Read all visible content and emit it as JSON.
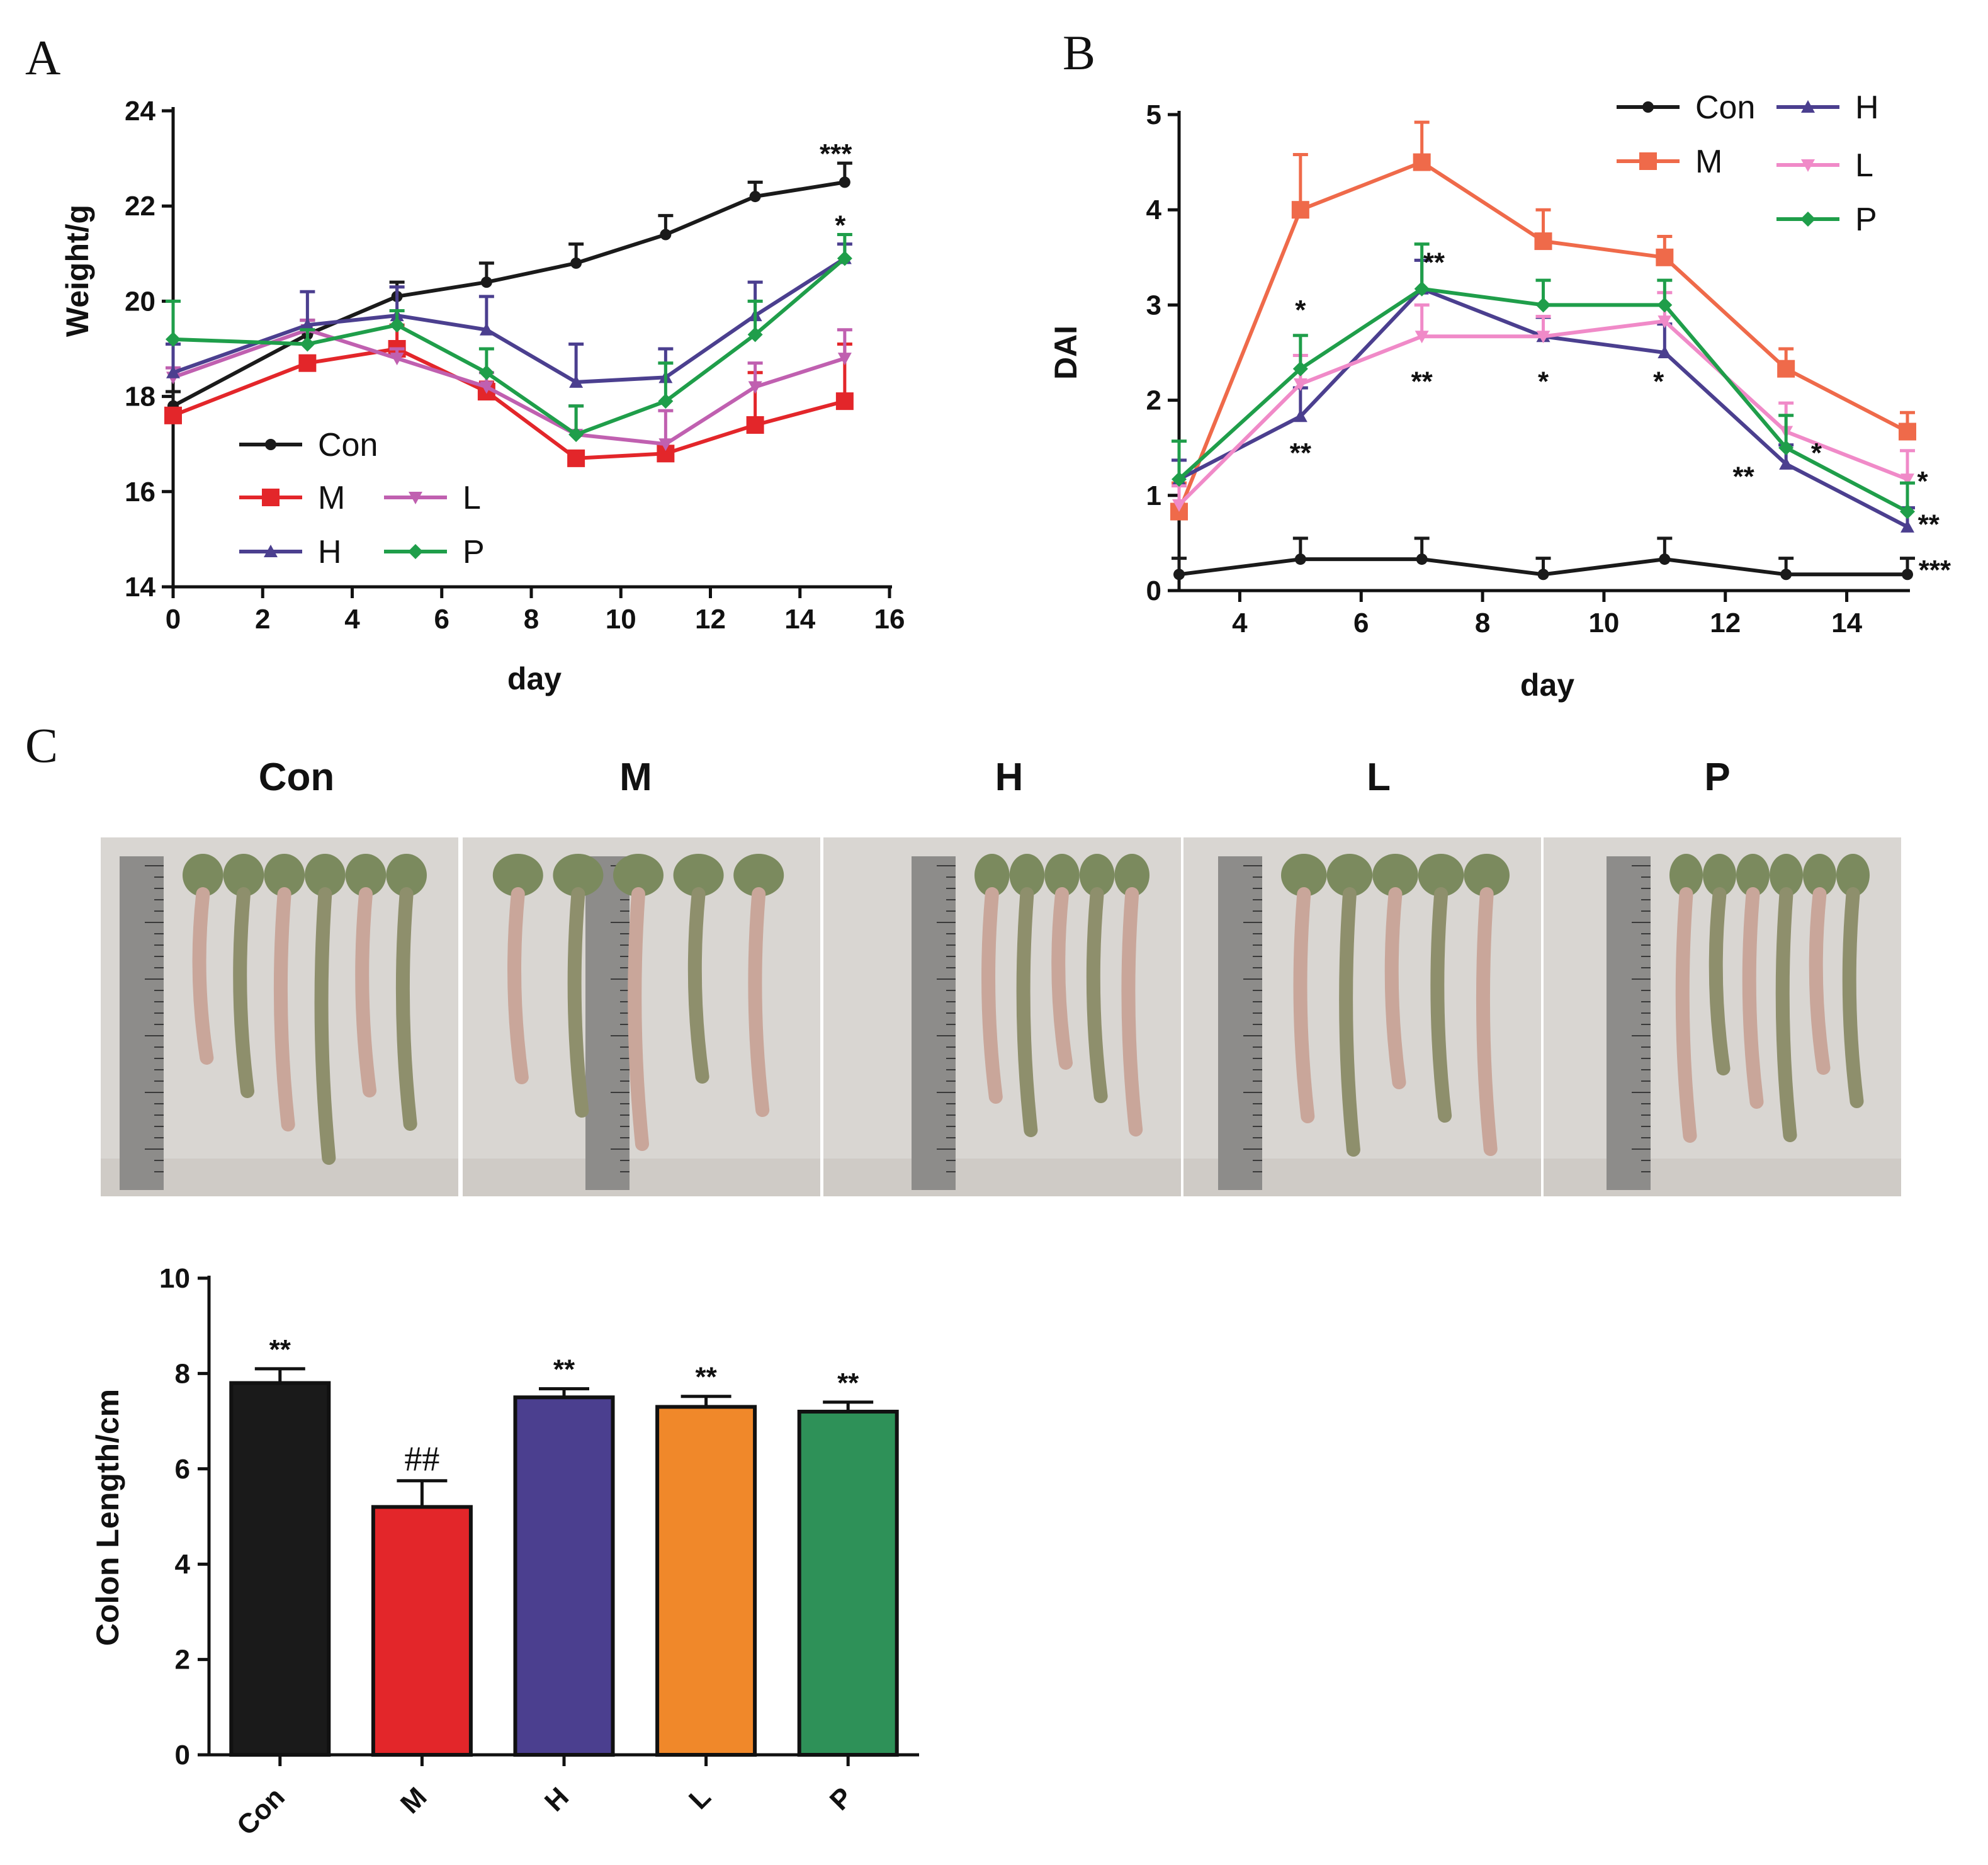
{
  "figure": {
    "panel_a_letter": "A",
    "panel_b_letter": "B",
    "panel_c_letter": "C"
  },
  "colors": {
    "Con": "#1a1a1a",
    "M": "#e3262a",
    "H": "#4b3f8f",
    "L": "#c060b0",
    "P": "#1f9e4a",
    "M_dai": "#ef6a4a",
    "L_dai": "#f08ac8",
    "bar_L": "#f0882a",
    "bar_P": "#2e9158"
  },
  "chart_data": [
    {
      "id": "A",
      "type": "line",
      "xlabel": "day",
      "ylabel": "Weight/g",
      "xlim": [
        0,
        16
      ],
      "ylim": [
        14,
        24
      ],
      "xticks": [
        "0",
        "2",
        "4",
        "6",
        "8",
        "10",
        "12",
        "14",
        "16"
      ],
      "yticks": [
        "14",
        "16",
        "18",
        "20",
        "22",
        "24"
      ],
      "legend": [
        "Con",
        "M",
        "L",
        "H",
        "P"
      ],
      "series": [
        {
          "name": "Con",
          "x": [
            0,
            3,
            5,
            7,
            9,
            11,
            13,
            15
          ],
          "y": [
            17.8,
            19.3,
            20.1,
            20.4,
            20.8,
            21.4,
            22.2,
            22.5
          ],
          "err": [
            0.3,
            0.3,
            0.3,
            0.4,
            0.4,
            0.4,
            0.3,
            0.4
          ]
        },
        {
          "name": "M",
          "x": [
            0,
            3,
            5,
            7,
            9,
            11,
            13,
            15
          ],
          "y": [
            17.6,
            18.7,
            19.0,
            18.1,
            16.7,
            16.8,
            17.4,
            17.9
          ],
          "err": [
            0.1,
            0.1,
            0.5,
            0.2,
            0.1,
            0.1,
            1.1,
            1.2
          ]
        },
        {
          "name": "L",
          "x": [
            0,
            3,
            5,
            7,
            9,
            11,
            13,
            15
          ],
          "y": [
            18.4,
            19.4,
            18.8,
            18.2,
            17.2,
            17.0,
            18.2,
            18.8
          ],
          "err": [
            0.2,
            0.2,
            0.2,
            0.3,
            0.6,
            0.7,
            0.5,
            0.6
          ]
        },
        {
          "name": "H",
          "x": [
            0,
            3,
            5,
            7,
            9,
            11,
            13,
            15
          ],
          "y": [
            18.5,
            19.5,
            19.7,
            19.4,
            18.3,
            18.4,
            19.7,
            20.9
          ],
          "err": [
            0.6,
            0.7,
            0.6,
            0.7,
            0.8,
            0.6,
            0.7,
            0.3
          ]
        },
        {
          "name": "P",
          "x": [
            0,
            3,
            5,
            7,
            9,
            11,
            13,
            15
          ],
          "y": [
            19.2,
            19.1,
            19.5,
            18.5,
            17.2,
            17.9,
            19.3,
            20.9
          ],
          "err": [
            0.8,
            0.3,
            0.3,
            0.5,
            0.6,
            0.8,
            0.7,
            0.5
          ]
        }
      ],
      "annotations": [
        {
          "text": "***",
          "x": 14.8,
          "y": 22.9
        },
        {
          "text": "*",
          "x": 14.9,
          "y": 21.4
        }
      ]
    },
    {
      "id": "B",
      "type": "line",
      "xlabel": "day",
      "ylabel": "DAI",
      "xlim": [
        3,
        15
      ],
      "ylim": [
        0,
        5
      ],
      "xticks": [
        "4",
        "6",
        "8",
        "10",
        "12",
        "14"
      ],
      "yticks": [
        "0",
        "1",
        "2",
        "3",
        "4",
        "5"
      ],
      "legend": [
        "Con",
        "H",
        "M",
        "L",
        "P"
      ],
      "series": [
        {
          "name": "Con",
          "x": [
            3,
            5,
            7,
            9,
            11,
            13,
            15
          ],
          "y": [
            0.17,
            0.33,
            0.33,
            0.17,
            0.33,
            0.17,
            0.17
          ],
          "err": [
            0.17,
            0.22,
            0.22,
            0.17,
            0.22,
            0.17,
            0.17
          ]
        },
        {
          "name": "M",
          "x": [
            3,
            5,
            7,
            9,
            11,
            13,
            15
          ],
          "y": [
            0.83,
            4.0,
            4.5,
            3.67,
            3.5,
            2.33,
            1.67
          ],
          "err": [
            0.3,
            0.58,
            0.42,
            0.33,
            0.22,
            0.21,
            0.2
          ]
        },
        {
          "name": "H",
          "x": [
            3,
            5,
            7,
            9,
            11,
            13,
            15
          ],
          "y": [
            1.17,
            1.83,
            3.17,
            2.67,
            2.5,
            1.33,
            0.67
          ],
          "err": [
            0.2,
            0.3,
            0.3,
            0.2,
            0.3,
            0.2,
            0.2
          ]
        },
        {
          "name": "L",
          "x": [
            3,
            5,
            7,
            9,
            11,
            13,
            15
          ],
          "y": [
            0.9,
            2.17,
            2.67,
            2.67,
            2.83,
            1.67,
            1.17
          ],
          "err": [
            0.2,
            0.3,
            0.33,
            0.21,
            0.3,
            0.3,
            0.3
          ]
        },
        {
          "name": "P",
          "x": [
            3,
            5,
            7,
            9,
            11,
            13,
            15
          ],
          "y": [
            1.17,
            2.33,
            3.17,
            3.0,
            3.0,
            1.5,
            0.83
          ],
          "err": [
            0.4,
            0.35,
            0.47,
            0.26,
            0.26,
            0.34,
            0.3
          ]
        }
      ],
      "annotations": [
        {
          "text": "*",
          "x": 5.0,
          "y": 2.85
        },
        {
          "text": "**",
          "x": 5.0,
          "y": 1.35
        },
        {
          "text": "**",
          "x": 7.2,
          "y": 3.35
        },
        {
          "text": "**",
          "x": 7.0,
          "y": 2.1
        },
        {
          "text": "*",
          "x": 9.0,
          "y": 2.1
        },
        {
          "text": "*",
          "x": 10.9,
          "y": 2.1
        },
        {
          "text": "**",
          "x": 12.3,
          "y": 1.1
        },
        {
          "text": "*",
          "x": 13.5,
          "y": 1.35
        },
        {
          "text": "*",
          "x": 15.25,
          "y": 1.05
        },
        {
          "text": "**",
          "x": 15.35,
          "y": 0.6
        },
        {
          "text": "***",
          "x": 15.45,
          "y": 0.12
        }
      ]
    },
    {
      "id": "C",
      "type": "bar",
      "categories": [
        "Con",
        "M",
        "H",
        "L",
        "P"
      ],
      "values": [
        7.8,
        5.2,
        7.5,
        7.3,
        7.2
      ],
      "err": [
        0.3,
        0.55,
        0.18,
        0.22,
        0.2
      ],
      "ylabel": "Colon Length/cm",
      "ylim": [
        0,
        10
      ],
      "yticks": [
        "0",
        "2",
        "4",
        "6",
        "8",
        "10"
      ],
      "bar_annotations": [
        "**",
        "##",
        "**",
        "**",
        "**"
      ]
    }
  ],
  "photo_groups": [
    "Con",
    "M",
    "H",
    "L",
    "P"
  ],
  "photo_intestine_counts": [
    6,
    5,
    5,
    5,
    6
  ]
}
